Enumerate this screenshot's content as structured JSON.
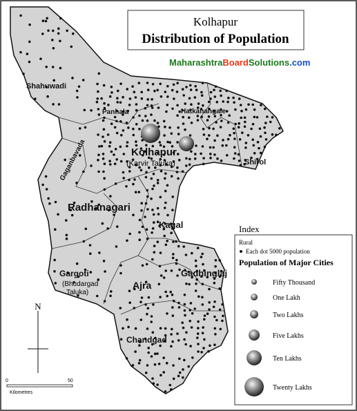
{
  "header": {
    "place": "Kolhapur",
    "title": "Distribution of Population",
    "watermark": {
      "part1": "Maharashtra",
      "part2": "Board",
      "part3": "Solutions",
      "part4": ".com"
    }
  },
  "talukas": [
    "Shahuwadi",
    "Panhala",
    "Hatkanangale",
    "Shirol",
    "Kolhapur",
    "(Karvir Taluka)",
    "Gaganbavada",
    "Radhanagari",
    "Kagal",
    "Gargoti",
    "(Bhudargad",
    "Taluka)",
    "Ajra",
    "Gadhinglaj",
    "Chandgad"
  ],
  "index": {
    "heading": "Index",
    "rural": "Rural",
    "dot": "Each dot 5000 population",
    "cities_heading": "Population of Major Cities",
    "cities": [
      "Fifty Thousand",
      "One Lakh",
      "Two Lakhs",
      "Five Lakhs",
      "Ten Lakhs",
      "Twenty Lakhs"
    ]
  },
  "north": "N",
  "scale": {
    "start": "0",
    "end": "50",
    "unit": "Kilometres"
  }
}
